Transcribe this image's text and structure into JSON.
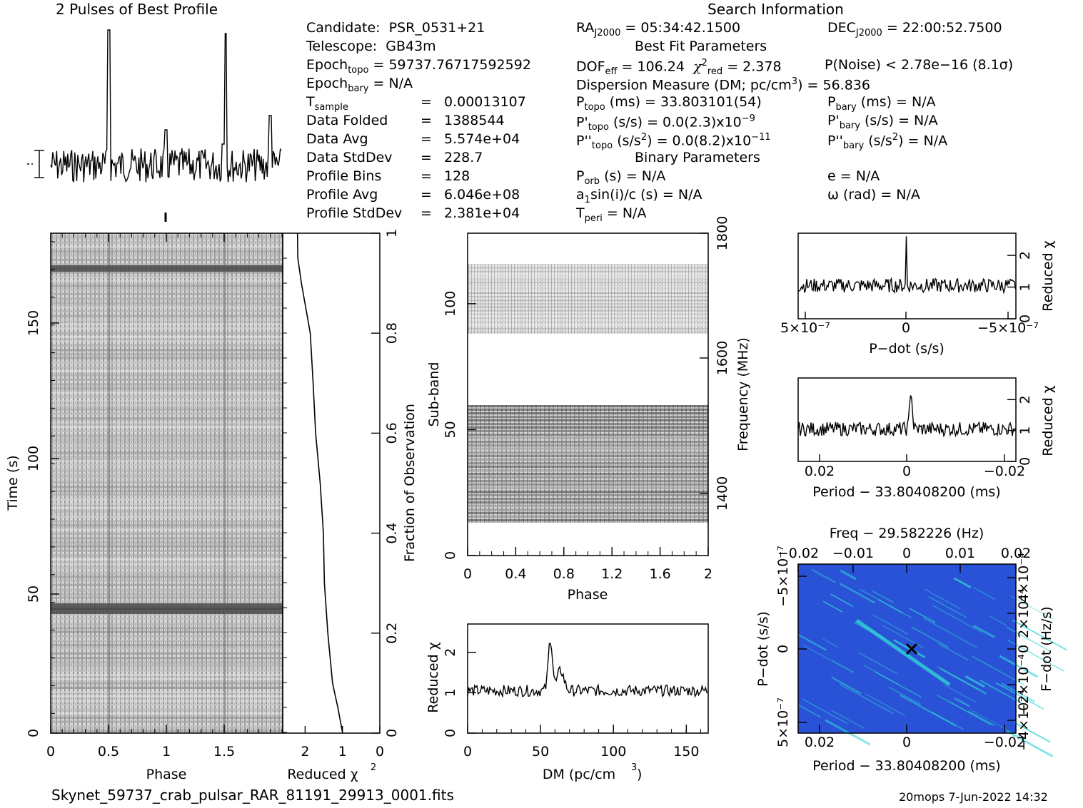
{
  "title_profile": "2 Pulses of Best Profile",
  "title_search": "Search Information",
  "filename": "Skynet_59737_crab_pulsar_RAR_81191_29913_0001.fits",
  "footer_stamp": "20mops   7-Jun-2022 14:32",
  "info_left": [
    {
      "label": "Candidate:",
      "value": "PSR_0531+21"
    },
    {
      "label": "Telescope:",
      "value": "GB43m"
    },
    {
      "label": "Epoch",
      "sub": "topo",
      "value": "= 59737.76717592592"
    },
    {
      "label": "Epoch",
      "sub": "bary",
      "value": "= N/A"
    },
    {
      "label": "T",
      "sub": "sample",
      "value": "0.00013107"
    },
    {
      "label": "Data Folded",
      "value": "1388544"
    },
    {
      "label": "Data Avg",
      "value": "5.574e+04"
    },
    {
      "label": "Data StdDev",
      "value": "228.7"
    },
    {
      "label": "Profile Bins",
      "value": "128"
    },
    {
      "label": "Profile Avg",
      "value": "6.046e+08"
    },
    {
      "label": "Profile StdDev",
      "value": "2.381e+04"
    }
  ],
  "info_right": {
    "ra": "05:34:42.1500",
    "dec": "22:00:52.7500",
    "best_fit_header": "Best Fit Parameters",
    "dof": "106.24",
    "chi2_red": "2.378",
    "p_noise": "P(Noise) < 2.78e−16  (8.1σ)",
    "dm_line": "Dispersion Measure (DM; pc/cm",
    "dm_value": ") = 56.836",
    "p_topo": "(ms) =  33.803101(54)",
    "p_bary": "(ms) = N/A",
    "pd_topo": "(s/s) = 0.0(2.3)x10",
    "pd_topo_exp": "−9",
    "pd_bary": "(s/s) = N/A",
    "pdd_topo": "(s/s",
    "pdd_topo_val": ") = 0.0(8.2)x10",
    "pdd_topo_exp": "−11",
    "pdd_bary": ") = N/A",
    "binary_header": "Binary Parameters",
    "p_orb": "(s) = N/A",
    "e": "e = N/A",
    "a1sini": "sin(i)/c (s) = N/A",
    "omega": "ω (rad) = N/A",
    "t_peri": "= N/A"
  },
  "labels": {
    "phase": "Phase",
    "time": "Time (s)",
    "reduced_chi2": "Reduced χ",
    "fraction": "Fraction of Observation",
    "subband": "Sub-band",
    "frequency": "Frequency (MHz)",
    "dm_axis": "DM (pc/cm",
    "pdot_axis": "P−dot (s/s)",
    "period_axis": "Period − 33.80408200 (ms)",
    "freq_title": "Freq − 29.582226 (Hz)",
    "fdot_axis": "F−dot (Hz/s)"
  },
  "colors": {
    "plane_bg": "#2a52d6",
    "plane_streak": "#2fd6d6",
    "ink": "#000000"
  },
  "chart_data": [
    {
      "type": "line",
      "title": "2 Pulses of Best Profile",
      "x_label": "Phase",
      "xlim": [
        0,
        2
      ],
      "peaks_phase": [
        0.5,
        1.5
      ],
      "note": "pulse profile repeated twice"
    },
    {
      "type": "heatmap",
      "name": "time-phase",
      "x_label": "Phase",
      "y_label": "Time (s)",
      "xlim": [
        0,
        2
      ],
      "ylim": [
        0,
        180
      ],
      "x_ticks": [
        "0",
        "0.5",
        "1",
        "1.5"
      ],
      "y_ticks": [
        "0",
        "50",
        "100",
        "150"
      ]
    },
    {
      "type": "line",
      "name": "reduced-chi2-vs-fraction",
      "x_label": "Reduced χ²",
      "y_label": "Fraction of Observation",
      "xlim": [
        2.6,
        0
      ],
      "ylim": [
        0,
        1
      ],
      "x_ticks": [
        "2",
        "1",
        "0"
      ],
      "y_ticks": [
        "0",
        "0.2",
        "0.4",
        "0.6",
        "0.8",
        "1"
      ],
      "fraction": [
        0.0,
        0.05,
        0.1,
        0.2,
        0.3,
        0.4,
        0.5,
        0.6,
        0.7,
        0.8,
        0.9,
        0.95,
        1.0
      ],
      "chi2": [
        1.0,
        1.1,
        1.3,
        1.4,
        1.5,
        1.55,
        1.6,
        1.7,
        1.8,
        1.9,
        2.1,
        2.2,
        2.2
      ]
    },
    {
      "type": "heatmap",
      "name": "subband-phase",
      "x_label": "Phase",
      "y_label": "Sub-band",
      "y2_label": "Frequency (MHz)",
      "xlim": [
        0,
        2
      ],
      "ylim": [
        0,
        128
      ],
      "x_ticks": [
        "0",
        "0.4",
        "0.8",
        "1.2",
        "1.6",
        "2"
      ],
      "y_ticks": [
        "0",
        "50",
        "100"
      ],
      "y2_ticks": [
        "1400",
        "1600",
        "1800"
      ]
    },
    {
      "type": "line",
      "name": "dm-chi2",
      "x_label": "DM (pc/cm³)",
      "y_label": "Reduced χ²",
      "xlim": [
        0,
        165
      ],
      "ylim": [
        0,
        2.7
      ],
      "x_ticks": [
        "0",
        "50",
        "100",
        "150"
      ],
      "y_ticks": [
        "0",
        "1",
        "2"
      ],
      "peak_dm": 56.8,
      "peak_chi2": 2.35
    },
    {
      "type": "line",
      "name": "pdot-chi2",
      "x_label": "P−dot (s/s)",
      "y_label": "Reduced χ²",
      "x_ticks": [
        "5×10⁻⁷",
        "0",
        "−5×10⁻⁷"
      ],
      "y_ticks": [
        "0",
        "1",
        "2"
      ],
      "peak_chi2": 2.6
    },
    {
      "type": "line",
      "name": "period-chi2",
      "x_label": "Period − 33.80408200 (ms)",
      "y_label": "Reduced χ²",
      "x_ticks": [
        "0.02",
        "0",
        "−0.02"
      ],
      "y_ticks": [
        "0",
        "1",
        "2"
      ],
      "peak_chi2": 2.4
    },
    {
      "type": "heatmap",
      "name": "period-pdot-plane",
      "title": "Freq − 29.582226 (Hz)",
      "x_label": "Period − 33.80408200 (ms)",
      "y_label": "P−dot (s/s)",
      "y2_label": "F−dot (Hz/s)",
      "x_ticks": [
        "0.02",
        "0",
        "−0.02"
      ],
      "x2_ticks": [
        "−0.02",
        "−0.01",
        "0",
        "0.01",
        "0.02"
      ],
      "y_ticks": [
        "−5×10⁻⁷",
        "0",
        "5×10⁻⁷"
      ],
      "y2_ticks": [
        "4×10⁻⁴",
        "2×10⁻⁴",
        "0",
        "−2×10⁻⁴",
        "−4×10⁻⁴"
      ]
    }
  ]
}
